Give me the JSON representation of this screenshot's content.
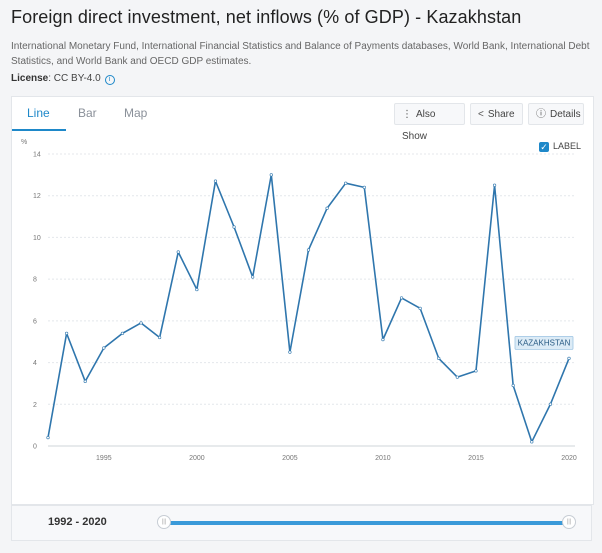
{
  "title": "Foreign direct investment, net inflows (% of GDP) - Kazakhstan",
  "source": "International Monetary Fund, International Financial Statistics and Balance of Payments databases, World Bank, International Debt Statistics, and World Bank and OECD GDP estimates.",
  "license": {
    "label": "License",
    "value": ": CC BY-4.0",
    "icon": "info-icon"
  },
  "tabs": [
    {
      "label": "Line",
      "active": true
    },
    {
      "label": "Bar",
      "active": false
    },
    {
      "label": "Map",
      "active": false
    }
  ],
  "toolbar": {
    "also_show": "Also Show",
    "share": "Share",
    "details": "Details"
  },
  "label_toggle": {
    "text": "LABEL",
    "checked": true
  },
  "range": {
    "label": "1992 - 2020",
    "start": 1992,
    "end": 2020
  },
  "colors": {
    "accent": "#1e88c9",
    "line": "#2f76ad"
  },
  "chart_data": {
    "type": "line",
    "ylabel": "%",
    "ylim": [
      0,
      14
    ],
    "yticks": [
      0,
      2,
      4,
      6,
      8,
      10,
      12,
      14
    ],
    "xticks": [
      1995,
      2000,
      2005,
      2010,
      2015,
      2020
    ],
    "grid": true,
    "series": [
      {
        "name": "KAZAKHSTAN",
        "x": [
          1992,
          1993,
          1994,
          1995,
          1996,
          1997,
          1998,
          1999,
          2000,
          2001,
          2002,
          2003,
          2004,
          2005,
          2006,
          2007,
          2008,
          2009,
          2010,
          2011,
          2012,
          2013,
          2014,
          2015,
          2016,
          2017,
          2018,
          2019,
          2020
        ],
        "values": [
          0.4,
          5.4,
          3.1,
          4.7,
          5.4,
          5.9,
          5.2,
          9.3,
          7.5,
          12.7,
          10.5,
          8.1,
          13.0,
          4.5,
          9.4,
          11.4,
          12.6,
          12.4,
          5.1,
          7.1,
          6.6,
          4.2,
          3.3,
          3.6,
          12.5,
          2.9,
          0.2,
          2.0,
          4.2
        ]
      }
    ]
  }
}
